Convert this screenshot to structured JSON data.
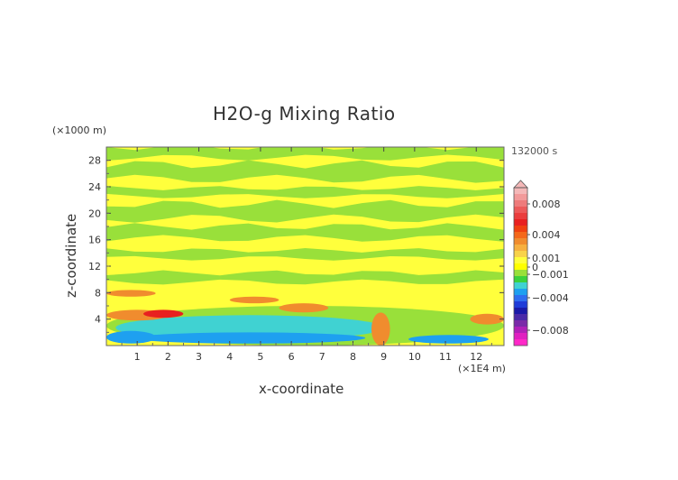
{
  "chart_data": {
    "type": "heatmap",
    "title": "H2O-g Mixing Ratio",
    "xlabel": "x-coordinate",
    "ylabel": "z-coordinate",
    "x_unit": "(×1E4 m)",
    "z_unit": "(×1000 m)",
    "time_label": "132000 s",
    "xlim": [
      0,
      12.9
    ],
    "ylim": [
      0,
      30
    ],
    "x_ticks": [
      "1",
      "2",
      "3",
      "4",
      "5",
      "6",
      "7",
      "8",
      "9",
      "10",
      "11",
      "12"
    ],
    "y_ticks": [
      "4",
      "8",
      "12",
      "16",
      "20",
      "24",
      "28"
    ],
    "colorbar": {
      "labels": [
        "0.008",
        "0.004",
        "0.001",
        "0",
        "−0.001",
        "−0.004",
        "−0.008"
      ],
      "label_values": [
        0.008,
        0.004,
        0.001,
        0,
        -0.001,
        -0.004,
        -0.008
      ],
      "extend": "max",
      "levels": [
        {
          "value": 0.01,
          "color": "#f4b8b8"
        },
        {
          "value": 0.009,
          "color": "#f29a9a"
        },
        {
          "value": 0.008,
          "color": "#ee7b7b"
        },
        {
          "value": 0.007,
          "color": "#ec5a5a"
        },
        {
          "value": 0.006,
          "color": "#ea3d3d"
        },
        {
          "value": 0.005,
          "color": "#e82020"
        },
        {
          "value": 0.004,
          "color": "#f04010"
        },
        {
          "value": 0.003,
          "color": "#f4681a"
        },
        {
          "value": 0.002,
          "color": "#f08c2e"
        },
        {
          "value": 0.0015,
          "color": "#f6b040"
        },
        {
          "value": 0.001,
          "color": "#f8d24a"
        },
        {
          "value": 0.0005,
          "color": "#ffff3c"
        },
        {
          "value": 0.0002,
          "color": "#ffff00"
        },
        {
          "value": 0,
          "color": "#99e03a"
        },
        {
          "value": -0.0005,
          "color": "#3cd23c"
        },
        {
          "value": -0.001,
          "color": "#40d2d2"
        },
        {
          "value": -0.002,
          "color": "#1ea0f0"
        },
        {
          "value": -0.003,
          "color": "#2f6ef0"
        },
        {
          "value": -0.004,
          "color": "#1f3cd8"
        },
        {
          "value": -0.005,
          "color": "#1a1aa8"
        },
        {
          "value": -0.006,
          "color": "#4a2aa8"
        },
        {
          "value": -0.007,
          "color": "#7a2aa8"
        },
        {
          "value": -0.008,
          "color": "#b020b8"
        },
        {
          "value": -0.009,
          "color": "#e020c0"
        },
        {
          "value": -0.01,
          "color": "#ff28c8"
        }
      ]
    },
    "field": {
      "background_color": "#ffff3c",
      "green_bands": [
        {
          "z": [
            28.4,
            30
          ],
          "color": "#99e03a"
        },
        {
          "z": [
            25.2,
            27.4
          ],
          "color": "#99e03a"
        },
        {
          "z": [
            22.6,
            23.8
          ],
          "color": "#99e03a"
        },
        {
          "z": [
            19.2,
            21.4
          ],
          "color": "#99e03a"
        },
        {
          "z": [
            16.2,
            18.0
          ],
          "color": "#99e03a"
        },
        {
          "z": [
            13.2,
            14.4
          ],
          "color": "#99e03a"
        },
        {
          "z": [
            9.6,
            11.0
          ],
          "color": "#99e03a"
        }
      ],
      "low_layer": [
        {
          "x": [
            0.0,
            12.9
          ],
          "z": [
            0.0,
            6.0
          ],
          "color": "#99e03a"
        },
        {
          "x": [
            0.3,
            9.0
          ],
          "z": [
            0.8,
            4.6
          ],
          "color": "#40d2d2"
        },
        {
          "x": [
            0.0,
            1.6
          ],
          "z": [
            0.3,
            2.2
          ],
          "color": "#1ea0f0"
        },
        {
          "x": [
            0.9,
            8.4
          ],
          "z": [
            0.3,
            2.0
          ],
          "color": "#1ea0f0"
        },
        {
          "x": [
            9.8,
            12.4
          ],
          "z": [
            0.3,
            1.6
          ],
          "color": "#1ea0f0"
        },
        {
          "x": [
            0.0,
            2.0
          ],
          "z": [
            3.8,
            5.4
          ],
          "color": "#f08c2e"
        },
        {
          "x": [
            0.0,
            1.6
          ],
          "z": [
            7.4,
            8.4
          ],
          "color": "#f08c2e"
        },
        {
          "x": [
            4.0,
            5.6
          ],
          "z": [
            6.4,
            7.4
          ],
          "color": "#f08c2e"
        },
        {
          "x": [
            5.6,
            7.2
          ],
          "z": [
            5.0,
            6.4
          ],
          "color": "#f08c2e"
        },
        {
          "x": [
            8.6,
            9.2
          ],
          "z": [
            0.0,
            5.0
          ],
          "color": "#f08c2e"
        },
        {
          "x": [
            11.8,
            12.9
          ],
          "z": [
            3.2,
            4.8
          ],
          "color": "#f08c2e"
        },
        {
          "x": [
            1.2,
            2.5
          ],
          "z": [
            4.2,
            5.4
          ],
          "color": "#e82020"
        }
      ]
    }
  }
}
